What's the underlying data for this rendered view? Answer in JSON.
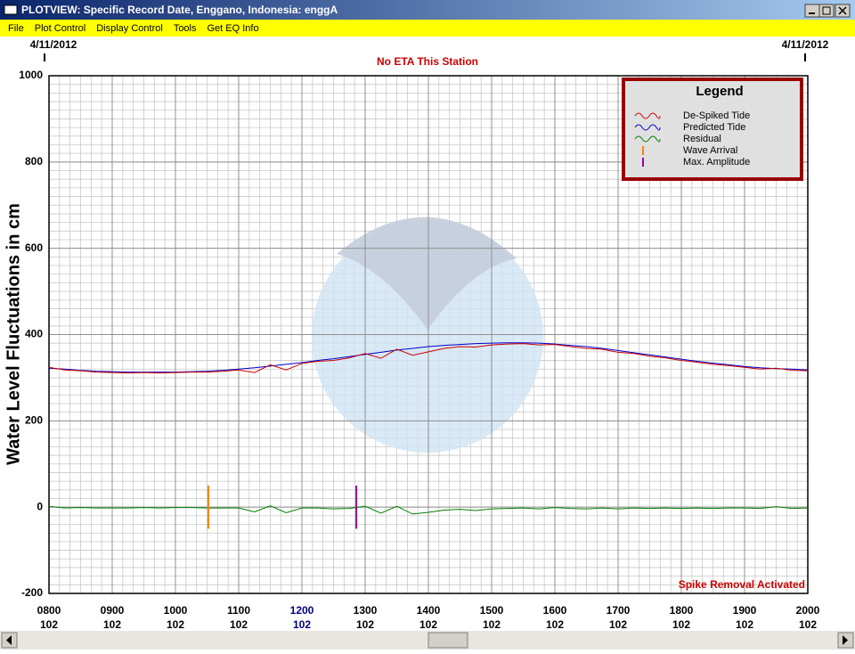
{
  "window": {
    "title": "PLOTVIEW: Specific Record Date, Enggano, Indonesia: enggA",
    "menu": [
      "File",
      "Plot Control",
      "Display Control",
      "Tools",
      "Get EQ Info"
    ]
  },
  "chart_data": {
    "type": "line",
    "date_left": "4/11/2012",
    "date_right": "4/11/2012",
    "subtitle": "No ETA This Station",
    "y_label": "Water Level Fluctuations in cm",
    "status": "Spike Removal Activated",
    "legend_title": "Legend",
    "legend": "top-right",
    "grid": true,
    "x": [
      8,
      8.25,
      8.5,
      8.75,
      9,
      9.25,
      9.5,
      9.75,
      10,
      10.25,
      10.5,
      10.75,
      11,
      11.25,
      11.5,
      11.75,
      12,
      12.25,
      12.5,
      12.75,
      13,
      13.25,
      13.5,
      13.75,
      14,
      14.25,
      14.5,
      14.75,
      15,
      15.25,
      15.5,
      15.75,
      16,
      16.25,
      16.5,
      16.75,
      17,
      17.25,
      17.5,
      17.75,
      18,
      18.25,
      18.5,
      18.75,
      19,
      19.25,
      19.5,
      19.75,
      20
    ],
    "series": [
      {
        "name": "De-Spiked Tide",
        "color": "#cc0000",
        "values": [
          324,
          318,
          316,
          313,
          312,
          311,
          312,
          311,
          312,
          313,
          313,
          315,
          318,
          312,
          330,
          318,
          333,
          338,
          340,
          346,
          356,
          345,
          366,
          352,
          360,
          368,
          372,
          371,
          376,
          378,
          379,
          376,
          377,
          372,
          368,
          366,
          359,
          356,
          350,
          346,
          340,
          336,
          331,
          328,
          324,
          320,
          322,
          317,
          316
        ]
      },
      {
        "name": "Predicted Tide",
        "color": "#0000cc",
        "values": [
          322,
          320,
          317,
          315,
          314,
          313,
          313,
          313,
          313,
          314,
          315,
          317,
          320,
          323,
          327,
          331,
          335,
          340,
          344,
          349,
          354,
          359,
          364,
          368,
          372,
          375,
          377,
          379,
          380,
          381,
          381,
          380,
          378,
          375,
          372,
          368,
          363,
          358,
          353,
          348,
          343,
          338,
          334,
          330,
          326,
          323,
          321,
          320,
          318
        ]
      },
      {
        "name": "Residual",
        "color": "#008000",
        "values": [
          2,
          -2,
          -1,
          -2,
          -2,
          -2,
          -1,
          -2,
          -1,
          -1,
          -2,
          -2,
          -2,
          -11,
          3,
          -13,
          -2,
          -2,
          -4,
          -3,
          2,
          -14,
          2,
          -16,
          -12,
          -7,
          -5,
          -8,
          -4,
          -3,
          -2,
          -4,
          -1,
          -3,
          -4,
          -2,
          -4,
          -2,
          -3,
          -2,
          -3,
          -2,
          -3,
          -2,
          -2,
          -3,
          1,
          -3,
          -2
        ]
      }
    ],
    "markers": [
      {
        "name": "Wave Arrival",
        "color": "#ff8000",
        "x": 10.52,
        "y_extent": [
          -50,
          50
        ]
      },
      {
        "name": "Max. Amplitude",
        "color": "#990099",
        "x": 12.86,
        "y_extent": [
          -50,
          50
        ]
      }
    ],
    "xlim": [
      8,
      20
    ],
    "xticks": [
      {
        "value": 8,
        "label": "0800"
      },
      {
        "value": 9,
        "label": "0900"
      },
      {
        "value": 10,
        "label": "1000"
      },
      {
        "value": 11,
        "label": "1100"
      },
      {
        "value": 12,
        "label": "1200"
      },
      {
        "value": 13,
        "label": "1300"
      },
      {
        "value": 14,
        "label": "1400"
      },
      {
        "value": 15,
        "label": "1500"
      },
      {
        "value": 16,
        "label": "1600"
      },
      {
        "value": 17,
        "label": "1700"
      },
      {
        "value": 18,
        "label": "1800"
      },
      {
        "value": 19,
        "label": "1900"
      },
      {
        "value": 20,
        "label": "2000"
      }
    ],
    "xtick_days": [
      "102",
      "102",
      "102",
      "102",
      "102",
      "102",
      "102",
      "102",
      "102",
      "102",
      "102",
      "102",
      "102"
    ],
    "highlight_xtick": 4,
    "ylim": [
      -200,
      1000
    ],
    "yticks": [
      -200,
      0,
      200,
      400,
      600,
      800,
      1000
    ]
  }
}
